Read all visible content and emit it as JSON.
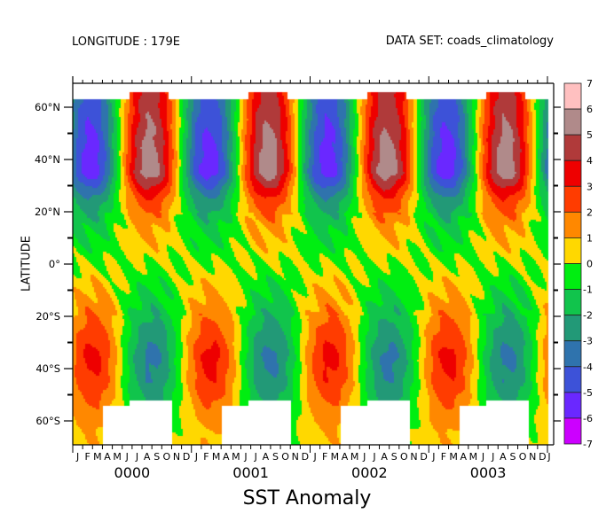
{
  "header": {
    "left": "LONGITUDE : 179E",
    "right": "DATA SET: coads_climatology"
  },
  "chart_data": {
    "type": "heatmap",
    "title": "SST Anomaly",
    "xlabel": "",
    "ylabel": "LATITUDE",
    "x_years": [
      "0000",
      "0001",
      "0002",
      "0003"
    ],
    "x_month_labels": [
      "J",
      "F",
      "M",
      "A",
      "M",
      "J",
      "J",
      "A",
      "S",
      "O",
      "N",
      "D"
    ],
    "x_final_label": "J",
    "y_ticks": [
      {
        "value": 60,
        "label": "60°N"
      },
      {
        "value": 40,
        "label": "40°N"
      },
      {
        "value": 20,
        "label": "20°N"
      },
      {
        "value": 0,
        "label": "0°"
      },
      {
        "value": -20,
        "label": "20°S"
      },
      {
        "value": -40,
        "label": "40°S"
      },
      {
        "value": -60,
        "label": "60°S"
      }
    ],
    "ylim": [
      -69,
      69
    ],
    "levels": [
      -7,
      -6,
      -5,
      -4,
      -3,
      -2,
      -1,
      0,
      1,
      2,
      3,
      4,
      5,
      6,
      7
    ],
    "level_labels": [
      "7",
      "6",
      "5",
      "4",
      "3",
      "2",
      "1",
      "0",
      "-1",
      "-2",
      "-3",
      "-4",
      "-5",
      "-6",
      "-7"
    ],
    "colors": [
      "#cc00ff",
      "#6a28ff",
      "#3d52d8",
      "#2f73ad",
      "#229977",
      "#11c44c",
      "#00ee11",
      "#ffd800",
      "#ff8800",
      "#ff3c00",
      "#ee0000",
      "#b03a3a",
      "#b08a8a",
      "#ffc0c0"
    ],
    "lat_rows": [
      65,
      55,
      45,
      35,
      25,
      15,
      5,
      -5,
      -15,
      -25,
      -35,
      -45,
      -55,
      -65
    ],
    "monthly_values": [
      [
        -3.5,
        -4.5,
        -4.2,
        -2.8,
        -0.7,
        1.6,
        3.5,
        4.6,
        4.2,
        2.8,
        0.7,
        -1.6
      ],
      [
        -3.9,
        -5.0,
        -4.7,
        -3.2,
        -0.8,
        1.8,
        3.9,
        5.0,
        4.7,
        3.2,
        0.8,
        -1.8
      ],
      [
        -4.3,
        -5.4,
        -5.1,
        -3.5,
        -0.9,
        2.0,
        4.3,
        5.6,
        5.1,
        3.5,
        0.9,
        -2.0
      ],
      [
        -4.7,
        -5.6,
        -5.4,
        -3.8,
        -1.0,
        2.2,
        4.7,
        5.8,
        5.4,
        3.8,
        1.0,
        -2.2
      ],
      [
        -2.3,
        -3.0,
        -2.8,
        -1.9,
        -0.5,
        1.1,
        2.3,
        3.0,
        2.8,
        1.9,
        0.5,
        -1.1
      ],
      [
        -1.2,
        -1.5,
        -1.4,
        -0.9,
        -0.2,
        0.5,
        1.2,
        1.5,
        1.4,
        0.9,
        0.2,
        -0.5
      ],
      [
        -0.5,
        -0.6,
        -0.6,
        -0.4,
        -0.1,
        0.2,
        0.5,
        0.6,
        0.6,
        0.4,
        0.1,
        -0.2
      ],
      [
        0.4,
        0.6,
        0.6,
        0.4,
        0.2,
        -0.2,
        -0.4,
        -0.6,
        -0.6,
        -0.4,
        -0.2,
        0.2
      ],
      [
        1.1,
        1.5,
        1.5,
        1.1,
        0.4,
        -0.4,
        -1.1,
        -1.5,
        -1.5,
        -1.1,
        -0.4,
        0.4
      ],
      [
        1.8,
        2.4,
        2.4,
        1.8,
        0.7,
        -0.7,
        -1.8,
        -2.4,
        -2.4,
        -1.8,
        -0.7,
        0.7
      ],
      [
        2.4,
        3.4,
        3.4,
        2.4,
        0.9,
        -0.9,
        -2.4,
        -3.3,
        -3.3,
        -2.4,
        -0.9,
        0.9
      ],
      [
        2.1,
        2.9,
        2.9,
        2.1,
        0.8,
        -0.8,
        -2.1,
        -2.9,
        -2.9,
        -2.1,
        -0.8,
        0.8
      ],
      [
        1.4,
        1.9,
        1.9,
        1.4,
        0.5,
        -0.5,
        -1.4,
        -1.9,
        -1.9,
        -1.4,
        -0.5,
        0.5
      ],
      [
        0.7,
        1.0,
        1.0,
        0.7,
        null,
        null,
        null,
        null,
        null,
        null,
        null,
        0.3
      ]
    ]
  }
}
